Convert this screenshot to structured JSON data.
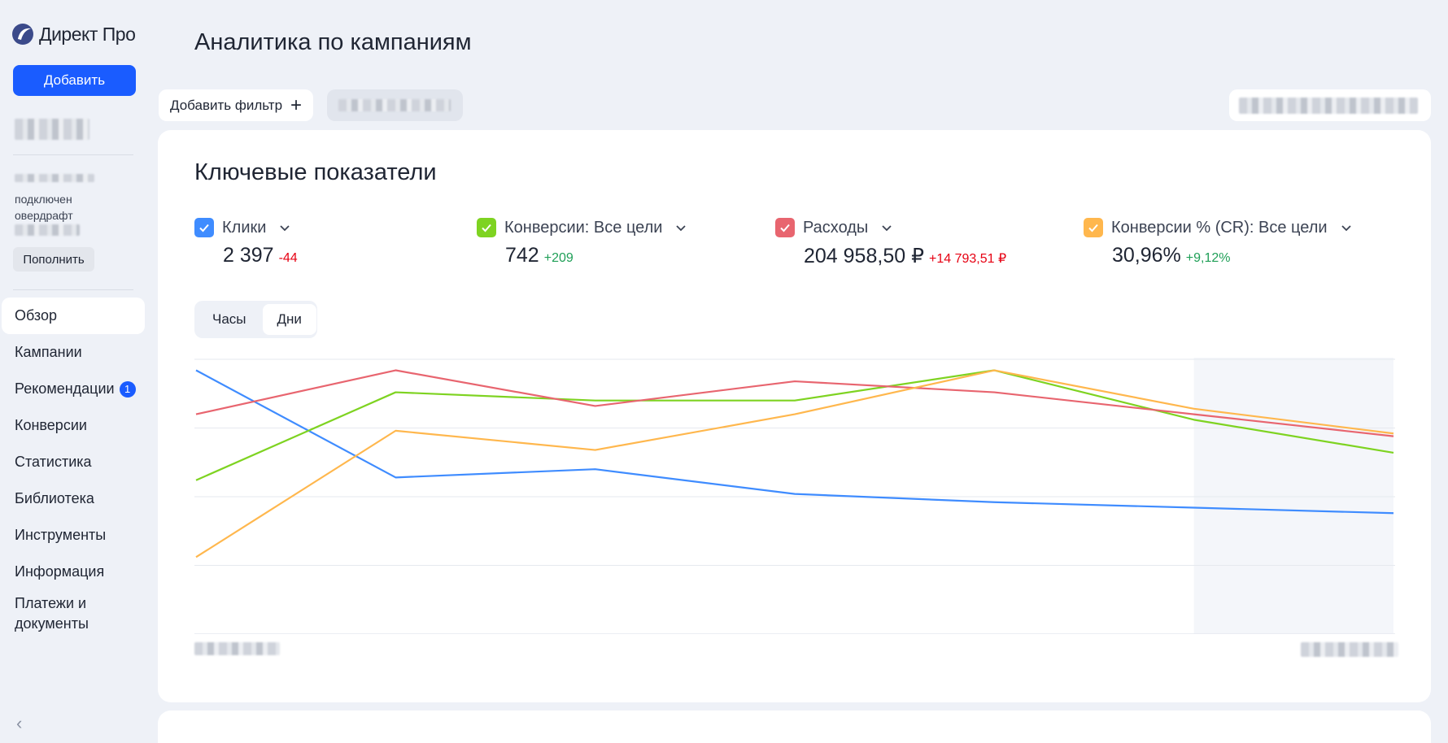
{
  "app": {
    "logo_text": "Директ Про",
    "add_button": "Добавить",
    "overdraft_line1": "подключен",
    "overdraft_line2": "овердрафт",
    "topup_button": "Пополнить"
  },
  "nav": {
    "items": [
      {
        "label": "Обзор",
        "active": true
      },
      {
        "label": "Кампании"
      },
      {
        "label": "Рекомендации",
        "badge": "1"
      },
      {
        "label": "Конверсии"
      },
      {
        "label": "Статистика"
      },
      {
        "label": "Библиотека"
      },
      {
        "label": "Инструменты"
      },
      {
        "label": "Информация"
      },
      {
        "label": "Платежи и документы"
      }
    ]
  },
  "header": {
    "title": "Аналитика по кампаниям",
    "add_filter": "Добавить фильтр"
  },
  "card": {
    "title": "Ключевые показатели",
    "metrics": [
      {
        "label": "Клики",
        "value": "2 397",
        "delta": "-44",
        "delta_sign": "neg",
        "color": "#3f8cff"
      },
      {
        "label": "Конверсии: Все цели",
        "value": "742",
        "delta": "+209",
        "delta_sign": "pos",
        "color": "#7ed321"
      },
      {
        "label": "Расходы",
        "value": "204 958,50 ₽",
        "delta": "+14 793,51 ₽",
        "delta_sign": "neg",
        "color": "#e8656f"
      },
      {
        "label": "Конверсии % (CR): Все цели",
        "value": "30,96%",
        "delta": "+9,12%",
        "delta_sign": "pos",
        "color": "#ffb74d"
      }
    ],
    "toggle": {
      "hours": "Часы",
      "days": "Дни",
      "selected": "days"
    }
  },
  "chart_data": {
    "type": "line",
    "x": [
      0,
      1,
      2,
      3,
      4,
      5,
      6
    ],
    "ylim": [
      0,
      100
    ],
    "grid": true,
    "highlight_last_segment": true,
    "series": [
      {
        "name": "Клики",
        "color": "#3f8cff",
        "values": [
          96,
          57,
          60,
          51,
          48,
          46,
          44
        ]
      },
      {
        "name": "Конверсии: Все цели",
        "color": "#7ed321",
        "values": [
          56,
          88,
          85,
          85,
          96,
          78,
          66
        ]
      },
      {
        "name": "Расходы",
        "color": "#e8656f",
        "values": [
          80,
          96,
          83,
          92,
          88,
          80,
          72
        ]
      },
      {
        "name": "Конверсии % (CR): Все цели",
        "color": "#ffb74d",
        "values": [
          28,
          74,
          67,
          80,
          96,
          82,
          73
        ]
      }
    ]
  }
}
